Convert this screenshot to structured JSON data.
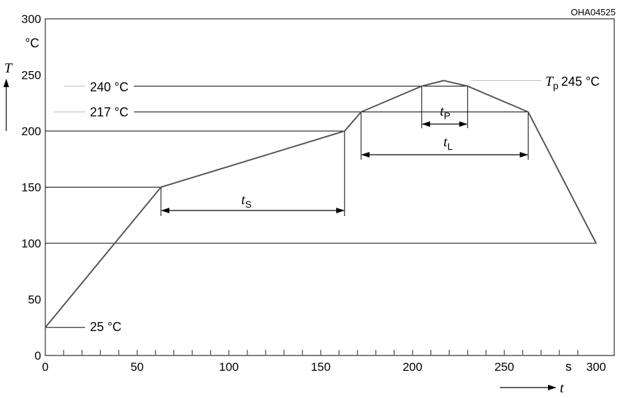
{
  "figure_code": "OHA04525",
  "chart_data": {
    "type": "line",
    "series": [
      {
        "x": [
          0,
          63,
          163,
          172,
          205,
          217,
          230,
          263,
          300
        ],
        "y": [
          25,
          150,
          200,
          217,
          240,
          245,
          240,
          217,
          100
        ]
      }
    ],
    "xlim": [
      0,
      300
    ],
    "ylim": [
      0,
      300
    ],
    "x_ticks": [
      "0",
      "50",
      "100",
      "150",
      "200",
      "250",
      "300"
    ],
    "y_ticks": [
      "0",
      "50",
      "100",
      "150",
      "200",
      "250",
      "300"
    ],
    "x_unit": "s",
    "y_unit": "°C",
    "xlabel": "t",
    "ylabel": "T",
    "grid": false,
    "annotations": {
      "level_25": "25 °C",
      "level_217": "217 °C",
      "level_240": "240 °C",
      "tp_symbol": "T",
      "tp_sub": "p",
      "tp_value": "245 °C",
      "ts_symbol": "t",
      "ts_sub": "S",
      "tp_dur_symbol": "t",
      "tp_dur_sub": "P",
      "tl_symbol": "t",
      "tl_sub": "L"
    }
  }
}
